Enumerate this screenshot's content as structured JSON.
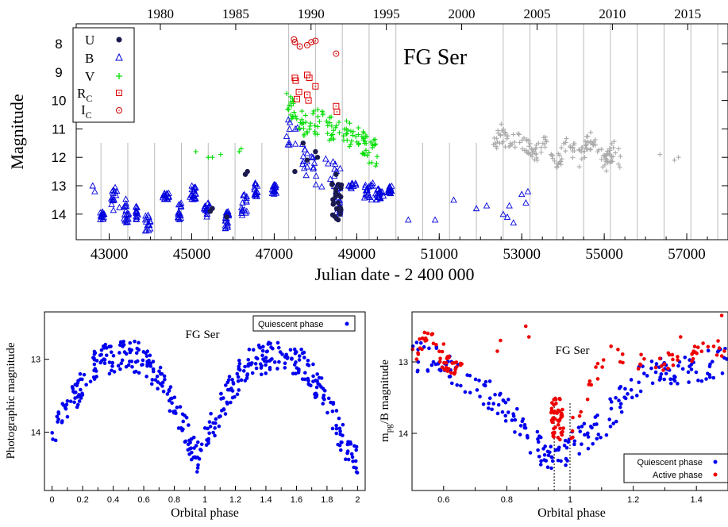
{
  "top": {
    "title": "FG Ser",
    "xlabel": "Julian date - 2 400 000",
    "ylabel": "Magnitude",
    "x_ticks": [
      "43000",
      "45000",
      "47000",
      "49000",
      "51000",
      "53000",
      "55000",
      "57000"
    ],
    "x_tick_values": [
      43000,
      45000,
      47000,
      49000,
      51000,
      53000,
      55000,
      57000
    ],
    "x_range": [
      42200,
      58000
    ],
    "y_ticks": [
      "8",
      "9",
      "10",
      "11",
      "12",
      "13",
      "14"
    ],
    "y_tick_values": [
      8,
      9,
      10,
      11,
      12,
      13,
      14
    ],
    "y_range": [
      7.3,
      14.9
    ],
    "year_ticks": [
      "1980",
      "1985",
      "1990",
      "1995",
      "2000",
      "2005",
      "2010",
      "2015"
    ],
    "year_tick_jd": [
      44239.5,
      46066.5,
      47892.5,
      49718.5,
      51544.5,
      53371.5,
      55197.5,
      57023.5
    ],
    "legend": [
      {
        "label": "U",
        "sub": "",
        "marker": "filled-circle",
        "color": "#1a1a4e"
      },
      {
        "label": "B",
        "sub": "",
        "marker": "open-triangle",
        "color": "#0000dd"
      },
      {
        "label": "V",
        "sub": "",
        "marker": "plus",
        "color": "#00dd00"
      },
      {
        "label": "R",
        "sub": "C",
        "marker": "open-square",
        "color": "#dd0000"
      },
      {
        "label": "I",
        "sub": "C",
        "marker": "open-circle",
        "color": "#cc0000"
      }
    ]
  },
  "bottom_left": {
    "title": "FG Ser",
    "xlabel": "Orbital phase",
    "ylabel": "Photographic magnitude",
    "legend": "Quiescent phase",
    "x_ticks": [
      "0",
      "0.2",
      "0.4",
      "0.6",
      "0.8",
      "1",
      "1.2",
      "1.4",
      "1.6",
      "1.8",
      "2"
    ],
    "x_tick_values": [
      0,
      0.2,
      0.4,
      0.6,
      0.8,
      1,
      1.2,
      1.4,
      1.6,
      1.8,
      2
    ],
    "x_range": [
      -0.05,
      2.05
    ],
    "y_ticks": [
      "13",
      "14"
    ],
    "y_tick_values": [
      13,
      14
    ],
    "y_range": [
      12.35,
      14.8
    ]
  },
  "bottom_right": {
    "title": "FG Ser",
    "xlabel": "Orbital phase",
    "ylabel_main": "m",
    "ylabel_sub": "pg",
    "ylabel_tail": "/B magnitude",
    "legend": [
      "Quiescent phase",
      "Active phase"
    ],
    "x_ticks": [
      "0.6",
      "0.8",
      "1",
      "1.2",
      "1.4"
    ],
    "x_tick_values": [
      0.6,
      0.8,
      1,
      1.2,
      1.4
    ],
    "x_range": [
      0.5,
      1.5
    ],
    "y_ticks": [
      "13",
      "14"
    ],
    "y_tick_values": [
      13,
      14
    ],
    "y_range": [
      12.3,
      14.8
    ],
    "dotted_lines": [
      0.95,
      1.0
    ]
  },
  "chart_data": [
    {
      "type": "scatter",
      "title": "FG Ser",
      "xlabel": "Julian date - 2 400 000",
      "ylabel": "Magnitude",
      "xlim": [
        42200,
        58000
      ],
      "ylim": [
        14.9,
        7.3
      ],
      "y_inverted": true,
      "grid": "vertical lines at the dates of eclipse minima",
      "legend_position": "top-left",
      "series": [
        {
          "name": "U",
          "approx_points": [
            [
              45500,
              13.9
            ],
            [
              46300,
              12.6
            ],
            [
              47500,
              12.5
            ],
            [
              47700,
              11.5
            ],
            [
              48000,
              11.8
            ],
            [
              48500,
              12.6
            ],
            [
              48600,
              13.6
            ]
          ]
        },
        {
          "name": "B",
          "approx_points": [
            [
              42600,
              13.0
            ],
            [
              42900,
              13.8
            ],
            [
              43200,
              12.8
            ],
            [
              43500,
              14.0
            ],
            [
              43900,
              14.2
            ],
            [
              44500,
              13.2
            ],
            [
              44800,
              14.0
            ],
            [
              45300,
              13.5
            ],
            [
              45800,
              14.3
            ],
            [
              46500,
              13.8
            ],
            [
              46900,
              13.1
            ],
            [
              47300,
              12.2
            ],
            [
              47500,
              10.6
            ],
            [
              47700,
              12.0
            ],
            [
              48000,
              12.5
            ],
            [
              48400,
              12.4
            ],
            [
              48600,
              13.7
            ],
            [
              49000,
              13.0
            ],
            [
              49400,
              13.2
            ],
            [
              49800,
              13.4
            ],
            [
              50300,
              14.2
            ],
            [
              51300,
              13.6
            ],
            [
              52200,
              14.0
            ],
            [
              52700,
              14.2
            ],
            [
              53100,
              13.6
            ]
          ]
        },
        {
          "name": "V",
          "approx_points": [
            [
              45100,
              11.8
            ],
            [
              45500,
              12.0
            ],
            [
              46200,
              11.8
            ],
            [
              47400,
              9.8
            ],
            [
              47600,
              10.4
            ],
            [
              47800,
              10.9
            ],
            [
              48000,
              10.6
            ],
            [
              48200,
              11.0
            ],
            [
              48600,
              11.0
            ],
            [
              48900,
              11.3
            ],
            [
              49200,
              11.8
            ],
            [
              49500,
              11.9
            ]
          ]
        },
        {
          "name": "R_C",
          "approx_points": [
            [
              47500,
              9.2
            ],
            [
              47600,
              9.8
            ],
            [
              47800,
              9.1
            ],
            [
              48000,
              9.5
            ],
            [
              48600,
              10.3
            ]
          ]
        },
        {
          "name": "I_C",
          "approx_points": [
            [
              47500,
              7.9
            ],
            [
              47600,
              8.1
            ],
            [
              47800,
              8.0
            ],
            [
              48000,
              7.9
            ],
            [
              48500,
              8.3
            ]
          ]
        },
        {
          "name": "",
          "note": "grey crosses (no legend entry)",
          "approx_points": [
            [
              52400,
              11.6
            ],
            [
              52700,
              11.4
            ],
            [
              53000,
              12.0
            ],
            [
              53400,
              11.7
            ],
            [
              53800,
              11.8
            ],
            [
              54300,
              11.9
            ],
            [
              54700,
              11.7
            ],
            [
              55300,
              12.1
            ],
            [
              56400,
              11.9
            ],
            [
              56800,
              12.0
            ]
          ]
        }
      ]
    },
    {
      "type": "scatter",
      "title": "FG Ser",
      "xlabel": "Orbital phase",
      "ylabel": "Photographic magnitude",
      "xlim": [
        -0.05,
        2.05
      ],
      "ylim": [
        14.8,
        12.35
      ],
      "y_inverted": true,
      "legend_position": "top-right",
      "series": [
        {
          "name": "Quiescent phase",
          "approx_curve": [
            [
              0.0,
              14.1
            ],
            [
              0.1,
              13.7
            ],
            [
              0.2,
              13.3
            ],
            [
              0.3,
              13.0
            ],
            [
              0.4,
              13.0
            ],
            [
              0.5,
              12.95
            ],
            [
              0.6,
              13.0
            ],
            [
              0.7,
              13.25
            ],
            [
              0.8,
              13.6
            ],
            [
              0.9,
              14.1
            ],
            [
              0.95,
              14.35
            ],
            [
              1.0,
              14.1
            ],
            [
              1.1,
              13.7
            ],
            [
              1.2,
              13.3
            ],
            [
              1.3,
              13.0
            ],
            [
              1.4,
              13.0
            ],
            [
              1.5,
              12.95
            ],
            [
              1.6,
              13.0
            ],
            [
              1.7,
              13.25
            ],
            [
              1.8,
              13.6
            ],
            [
              1.9,
              14.1
            ],
            [
              2.0,
              14.4
            ]
          ]
        }
      ]
    },
    {
      "type": "scatter",
      "title": "FG Ser",
      "xlabel": "Orbital phase",
      "ylabel": "m_pg/B magnitude",
      "xlim": [
        0.5,
        1.5
      ],
      "ylim": [
        14.8,
        12.3
      ],
      "y_inverted": true,
      "legend_position": "bottom-right",
      "series": [
        {
          "name": "Quiescent phase",
          "approx_curve": [
            [
              0.5,
              12.9
            ],
            [
              0.6,
              13.0
            ],
            [
              0.7,
              13.3
            ],
            [
              0.8,
              13.7
            ],
            [
              0.9,
              14.2
            ],
            [
              0.95,
              14.4
            ],
            [
              1.0,
              14.2
            ],
            [
              1.1,
              13.9
            ],
            [
              1.2,
              13.3
            ],
            [
              1.3,
              13.1
            ],
            [
              1.4,
              13.1
            ],
            [
              1.5,
              13.0
            ]
          ]
        },
        {
          "name": "Active phase",
          "approx_curve": [
            [
              0.5,
              12.95
            ],
            [
              0.55,
              12.6
            ],
            [
              0.6,
              13.0
            ],
            [
              0.65,
              13.1
            ],
            [
              0.9,
              13.5
            ],
            [
              0.96,
              13.9
            ],
            [
              1.05,
              13.7
            ],
            [
              1.1,
              13.0
            ],
            [
              1.12,
              12.85
            ],
            [
              1.2,
              13.0
            ],
            [
              1.3,
              13.0
            ],
            [
              1.4,
              12.85
            ],
            [
              1.5,
              12.8
            ]
          ]
        }
      ]
    }
  ]
}
